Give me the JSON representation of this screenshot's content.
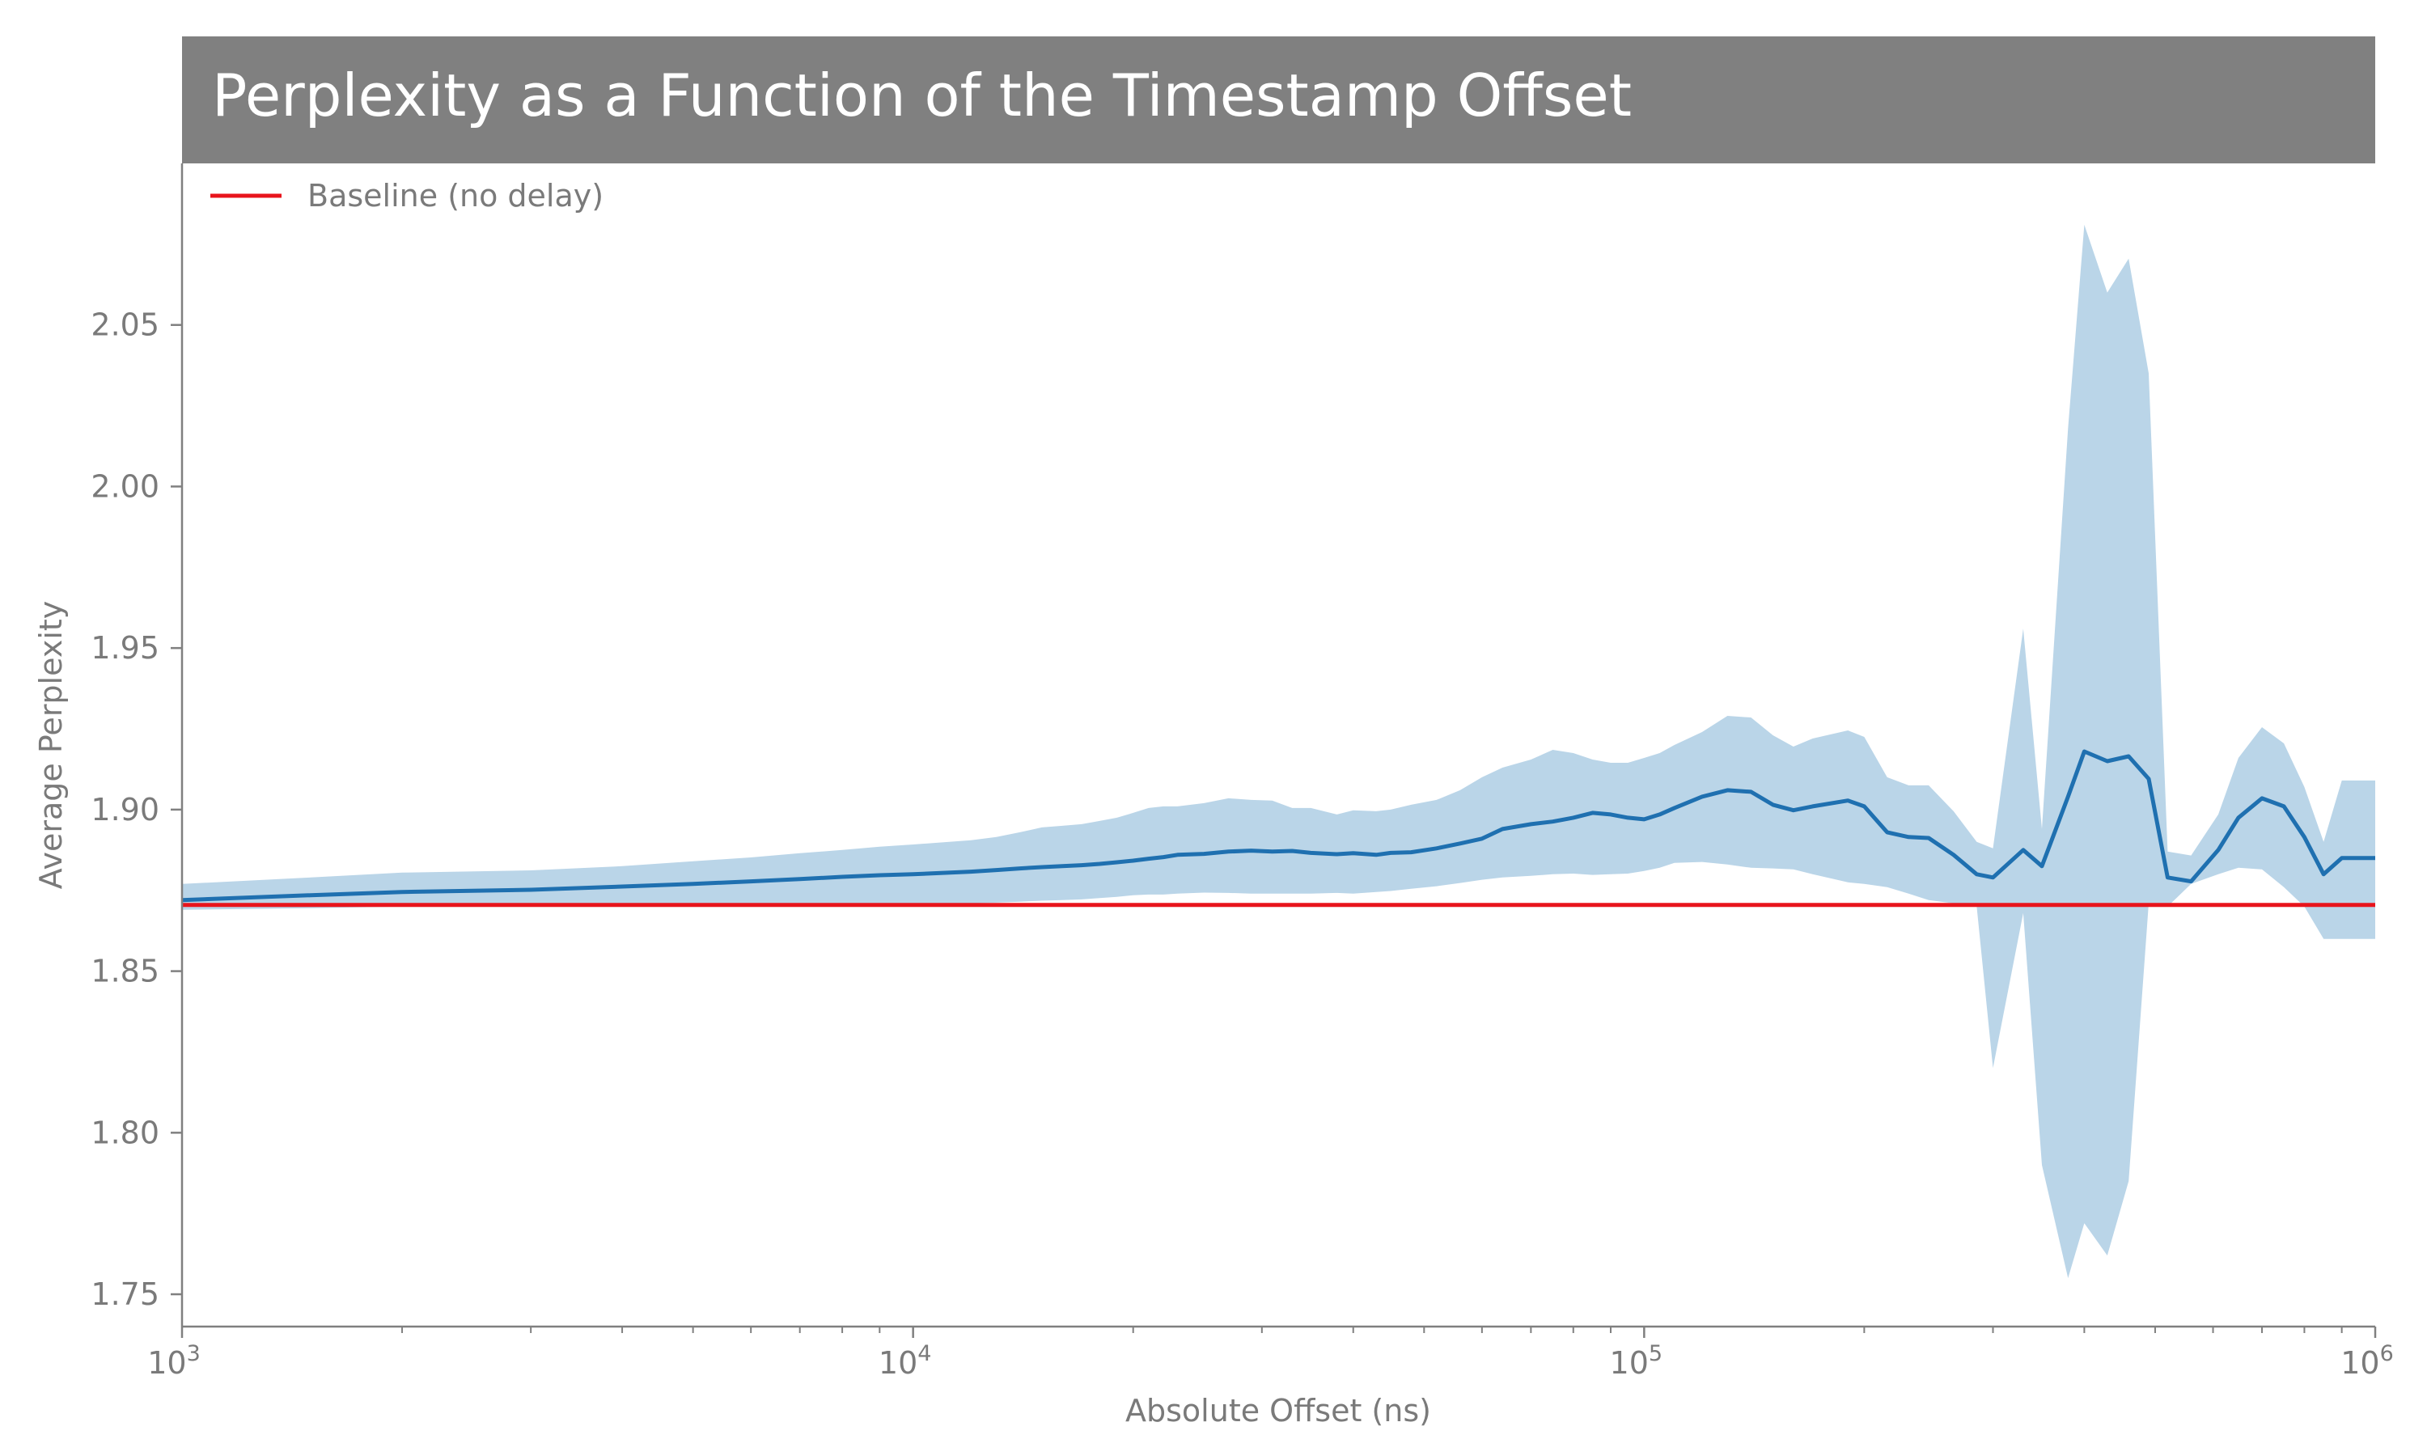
{
  "chart_data": {
    "type": "line",
    "title": "Perplexity as a Function of the Timestamp Offset",
    "xlabel": "Absolute Offset (ns)",
    "ylabel": "Average Perplexity",
    "xscale": "log",
    "xlim": [
      1000,
      1000000
    ],
    "ylim": [
      1.74,
      2.1
    ],
    "grid": false,
    "legend_position": "top-left",
    "x_ticks": [
      {
        "value": 1000,
        "base": "10",
        "exp": "3"
      },
      {
        "value": 10000,
        "base": "10",
        "exp": "4"
      },
      {
        "value": 100000,
        "base": "10",
        "exp": "5"
      },
      {
        "value": 1000000,
        "base": "10",
        "exp": "6"
      }
    ],
    "y_ticks": [
      {
        "value": 1.75,
        "label": "1.75"
      },
      {
        "value": 1.8,
        "label": "1.80"
      },
      {
        "value": 1.85,
        "label": "1.85"
      },
      {
        "value": 1.9,
        "label": "1.90"
      },
      {
        "value": 1.95,
        "label": "1.95"
      },
      {
        "value": 2.0,
        "label": "2.00"
      },
      {
        "value": 2.05,
        "label": "2.05"
      }
    ],
    "baseline": {
      "name": "Baseline (no delay)",
      "value": 1.8705,
      "color": "#e8141c"
    },
    "series": [
      {
        "color": "#1f70b0",
        "band_color": "#bad5e8",
        "x": [
          1000,
          1500,
          2000,
          3000,
          4000,
          5000,
          6000,
          7000,
          8000,
          9000,
          10000,
          12000,
          13000,
          14000,
          15000,
          16000,
          17000,
          18000,
          19000,
          20000,
          21000,
          22000,
          23000,
          25000,
          27000,
          29000,
          31000,
          33000,
          35000,
          38000,
          40000,
          43000,
          45000,
          48000,
          52000,
          56000,
          60000,
          64000,
          70000,
          75000,
          80000,
          85000,
          90000,
          95000,
          100000,
          105000,
          110000,
          120000,
          130000,
          140000,
          150000,
          160000,
          170000,
          190000,
          200000,
          215000,
          230000,
          245000,
          265000,
          285000,
          300000,
          330000,
          350000,
          380000,
          400000,
          430000,
          460000,
          490000,
          520000,
          560000,
          610000,
          650000,
          700000,
          750000,
          800000,
          850000,
          900000,
          950000,
          1000000
        ],
        "mean": [
          1.872,
          1.8735,
          1.8745,
          1.8752,
          1.8762,
          1.877,
          1.8778,
          1.8785,
          1.8792,
          1.8797,
          1.88,
          1.8808,
          1.8813,
          1.8818,
          1.8822,
          1.8825,
          1.8828,
          1.8832,
          1.8837,
          1.8842,
          1.8848,
          1.8853,
          1.886,
          1.8863,
          1.887,
          1.8873,
          1.887,
          1.8872,
          1.8866,
          1.8862,
          1.8865,
          1.886,
          1.8866,
          1.8868,
          1.888,
          1.8895,
          1.891,
          1.894,
          1.8955,
          1.8963,
          1.8975,
          1.899,
          1.8985,
          1.8975,
          1.897,
          1.8985,
          1.9005,
          1.904,
          1.906,
          1.9055,
          1.9015,
          1.8998,
          1.901,
          1.9028,
          1.901,
          1.893,
          1.8915,
          1.8912,
          1.886,
          1.88,
          1.879,
          1.8875,
          1.8825,
          1.904,
          1.918,
          1.915,
          1.9165,
          1.9095,
          1.879,
          1.8778,
          1.8875,
          1.8975,
          1.9035,
          1.901,
          1.8915,
          1.88,
          1.885,
          1.885,
          1.885
        ],
        "upper": [
          1.877,
          1.879,
          1.8805,
          1.8812,
          1.8825,
          1.884,
          1.8852,
          1.8865,
          1.8875,
          1.8885,
          1.8892,
          1.8905,
          1.8915,
          1.893,
          1.8945,
          1.895,
          1.8955,
          1.8965,
          1.8975,
          1.899,
          1.9005,
          1.901,
          1.901,
          1.902,
          1.9035,
          1.903,
          1.9028,
          1.9005,
          1.9005,
          1.8985,
          1.8998,
          1.8995,
          1.9,
          1.9015,
          1.903,
          1.906,
          1.91,
          1.913,
          1.9155,
          1.9185,
          1.9175,
          1.9155,
          1.9145,
          1.9145,
          1.916,
          1.9175,
          1.92,
          1.924,
          1.929,
          1.9285,
          1.923,
          1.9195,
          1.922,
          1.9245,
          1.9225,
          1.91,
          1.9075,
          1.9075,
          1.8995,
          1.89,
          1.888,
          1.956,
          1.894,
          2.018,
          2.081,
          2.06,
          2.0705,
          2.035,
          1.887,
          1.8858,
          1.8985,
          1.916,
          1.9255,
          1.9205,
          1.907,
          1.89,
          1.909,
          1.909,
          1.909
        ],
        "lower": [
          1.869,
          1.8695,
          1.87,
          1.8705,
          1.8705,
          1.8705,
          1.8705,
          1.8705,
          1.8705,
          1.8705,
          1.8705,
          1.871,
          1.8712,
          1.8715,
          1.8718,
          1.872,
          1.8722,
          1.8726,
          1.873,
          1.8735,
          1.8737,
          1.8737,
          1.874,
          1.8743,
          1.8742,
          1.874,
          1.874,
          1.874,
          1.874,
          1.8742,
          1.874,
          1.8745,
          1.8748,
          1.8755,
          1.8763,
          1.8773,
          1.8783,
          1.879,
          1.8795,
          1.88,
          1.8802,
          1.8798,
          1.88,
          1.8802,
          1.881,
          1.882,
          1.8835,
          1.8838,
          1.883,
          1.882,
          1.8818,
          1.8815,
          1.88,
          1.8775,
          1.877,
          1.876,
          1.874,
          1.872,
          1.871,
          1.87,
          1.82,
          1.868,
          1.79,
          1.755,
          1.772,
          1.762,
          1.785,
          1.871,
          1.87,
          1.877,
          1.88,
          1.882,
          1.8815,
          1.876,
          1.87,
          1.86,
          1.86,
          1.86,
          1.86
        ]
      }
    ]
  }
}
